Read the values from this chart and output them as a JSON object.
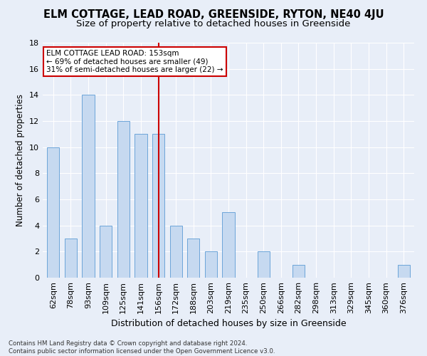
{
  "title": "ELM COTTAGE, LEAD ROAD, GREENSIDE, RYTON, NE40 4JU",
  "subtitle": "Size of property relative to detached houses in Greenside",
  "xlabel": "Distribution of detached houses by size in Greenside",
  "ylabel": "Number of detached properties",
  "categories": [
    "62sqm",
    "78sqm",
    "93sqm",
    "109sqm",
    "125sqm",
    "141sqm",
    "156sqm",
    "172sqm",
    "188sqm",
    "203sqm",
    "219sqm",
    "235sqm",
    "250sqm",
    "266sqm",
    "282sqm",
    "298sqm",
    "313sqm",
    "329sqm",
    "345sqm",
    "360sqm",
    "376sqm"
  ],
  "values": [
    10,
    3,
    14,
    4,
    12,
    11,
    11,
    4,
    3,
    2,
    5,
    0,
    2,
    0,
    1,
    0,
    0,
    0,
    0,
    0,
    1
  ],
  "bar_color": "#c6d9f0",
  "bar_edge_color": "#5b9bd5",
  "highlight_index": 6,
  "highlight_line_color": "#cc0000",
  "annotation_line1": "ELM COTTAGE LEAD ROAD: 153sqm",
  "annotation_line2": "← 69% of detached houses are smaller (49)",
  "annotation_line3": "31% of semi-detached houses are larger (22) →",
  "annotation_box_color": "#ffffff",
  "annotation_box_edge_color": "#cc0000",
  "footer_line1": "Contains HM Land Registry data © Crown copyright and database right 2024.",
  "footer_line2": "Contains public sector information licensed under the Open Government Licence v3.0.",
  "ylim": [
    0,
    18
  ],
  "yticks": [
    0,
    2,
    4,
    6,
    8,
    10,
    12,
    14,
    16,
    18
  ],
  "background_color": "#e8eef8",
  "grid_color": "#ffffff",
  "title_fontsize": 10.5,
  "subtitle_fontsize": 9.5,
  "tick_fontsize": 8,
  "ylabel_fontsize": 8.5,
  "xlabel_fontsize": 9,
  "bar_width": 0.7
}
